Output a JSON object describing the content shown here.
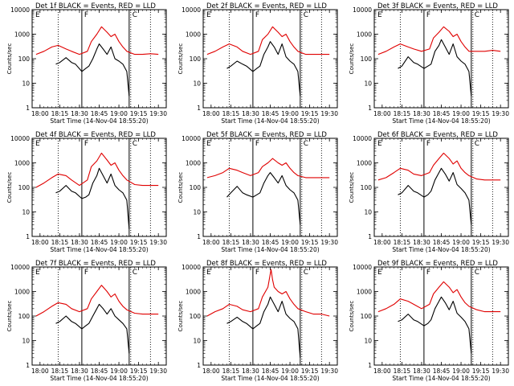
{
  "chart_data": {
    "type": "line",
    "layout": "3x3 grid of panels",
    "x_axis": {
      "label": "Start Time (14-Nov-04 18:55:20)",
      "ticks": [
        "18:00",
        "18:15",
        "18:30",
        "18:45",
        "19:00",
        "19:15",
        "19:30"
      ],
      "tick_values_hours": [
        18.0,
        18.25,
        18.5,
        18.75,
        19.0,
        19.25,
        19.5
      ],
      "range_hours": [
        17.9,
        19.6
      ]
    },
    "y_axis": {
      "label": "Counts/sec",
      "scale": "log",
      "range": [
        1,
        10000
      ],
      "ticks": [
        "1",
        "10",
        "100",
        "1000",
        "10000"
      ],
      "tick_values": [
        1,
        10,
        100,
        1000,
        10000
      ]
    },
    "markers": {
      "solid_lines_hours": [
        18.53,
        19.13
      ],
      "dotted_lines_hours": [
        18.23,
        19.15,
        19.4
      ],
      "flags": [
        "E",
        "F",
        "C"
      ],
      "flag_positions_hours": [
        17.93,
        18.55,
        19.16
      ]
    },
    "series_meta": [
      {
        "name": "Events",
        "color": "#000000"
      },
      {
        "name": "LLD",
        "color": "#e00000"
      }
    ],
    "panels": [
      {
        "title": "Det 1f BLACK = Events, RED = LLD",
        "series": [
          {
            "name": "Events",
            "color": "#000000",
            "x": [
              18.2,
              18.25,
              18.33,
              18.4,
              18.45,
              18.53,
              18.58,
              18.62,
              18.67,
              18.72,
              18.75,
              18.8,
              18.85,
              18.9,
              18.95,
              19.0,
              19.05,
              19.1,
              19.13
            ],
            "y": [
              60,
              70,
              110,
              70,
              60,
              30,
              40,
              50,
              100,
              250,
              400,
              250,
              150,
              300,
              100,
              80,
              60,
              30,
              3
            ]
          },
          {
            "name": "LLD",
            "color": "#e00000",
            "x": [
              17.95,
              18.05,
              18.15,
              18.23,
              18.33,
              18.4,
              18.5,
              18.6,
              18.65,
              18.72,
              18.78,
              18.85,
              18.9,
              18.95,
              19.0,
              19.05,
              19.1,
              19.2,
              19.3,
              19.4,
              19.5
            ],
            "y": [
              150,
              200,
              300,
              350,
              250,
              200,
              150,
              200,
              500,
              1000,
              2000,
              1200,
              800,
              1000,
              500,
              300,
              200,
              150,
              150,
              160,
              150
            ]
          }
        ]
      },
      {
        "title": "Det 2f BLACK = Events, RED = LLD",
        "series": [
          {
            "name": "Events",
            "color": "#000000",
            "x": [
              18.2,
              18.25,
              18.33,
              18.4,
              18.45,
              18.53,
              18.58,
              18.62,
              18.67,
              18.72,
              18.75,
              18.8,
              18.85,
              18.9,
              18.95,
              19.0,
              19.05,
              19.1,
              19.13
            ],
            "y": [
              40,
              50,
              80,
              60,
              50,
              30,
              40,
              50,
              150,
              300,
              500,
              300,
              150,
              400,
              120,
              80,
              60,
              30,
              3
            ]
          },
          {
            "name": "LLD",
            "color": "#e00000",
            "x": [
              17.95,
              18.05,
              18.15,
              18.23,
              18.33,
              18.4,
              18.5,
              18.6,
              18.65,
              18.72,
              18.78,
              18.85,
              18.9,
              18.95,
              19.0,
              19.05,
              19.1,
              19.2,
              19.3,
              19.4,
              19.5
            ],
            "y": [
              150,
              200,
              300,
              400,
              300,
              200,
              150,
              200,
              600,
              1000,
              2000,
              1200,
              800,
              1000,
              500,
              300,
              200,
              150,
              150,
              150,
              150
            ]
          }
        ]
      },
      {
        "title": "Det 3f BLACK = Events, RED = LLD",
        "series": [
          {
            "name": "Events",
            "color": "#000000",
            "x": [
              18.2,
              18.25,
              18.33,
              18.4,
              18.45,
              18.53,
              18.58,
              18.62,
              18.67,
              18.72,
              18.75,
              18.8,
              18.85,
              18.9,
              18.95,
              19.0,
              19.05,
              19.1,
              19.13
            ],
            "y": [
              40,
              50,
              120,
              70,
              60,
              40,
              50,
              60,
              200,
              350,
              600,
              300,
              150,
              400,
              120,
              80,
              60,
              30,
              3
            ]
          },
          {
            "name": "LLD",
            "color": "#e00000",
            "x": [
              17.95,
              18.05,
              18.15,
              18.23,
              18.33,
              18.4,
              18.5,
              18.6,
              18.65,
              18.72,
              18.78,
              18.85,
              18.9,
              18.95,
              19.0,
              19.05,
              19.1,
              19.2,
              19.3,
              19.4,
              19.5
            ],
            "y": [
              150,
              200,
              300,
              400,
              300,
              250,
              200,
              250,
              700,
              1200,
              2000,
              1300,
              800,
              1000,
              500,
              300,
              200,
              200,
              200,
              220,
              200
            ]
          }
        ]
      },
      {
        "title": "Det 4f BLACK = Events, RED = LLD",
        "series": [
          {
            "name": "Events",
            "color": "#000000",
            "x": [
              18.2,
              18.25,
              18.33,
              18.4,
              18.45,
              18.53,
              18.58,
              18.62,
              18.67,
              18.72,
              18.75,
              18.8,
              18.85,
              18.9,
              18.95,
              19.0,
              19.05,
              19.1,
              19.13
            ],
            "y": [
              60,
              70,
              120,
              70,
              60,
              35,
              40,
              50,
              150,
              300,
              600,
              300,
              150,
              350,
              120,
              80,
              60,
              30,
              2
            ]
          },
          {
            "name": "LLD",
            "color": "#e00000",
            "x": [
              17.95,
              18.05,
              18.15,
              18.23,
              18.33,
              18.4,
              18.5,
              18.6,
              18.65,
              18.72,
              18.78,
              18.85,
              18.9,
              18.95,
              19.0,
              19.05,
              19.1,
              19.2,
              19.3,
              19.4,
              19.5
            ],
            "y": [
              100,
              150,
              250,
              350,
              300,
              200,
              120,
              200,
              700,
              1200,
              2500,
              1300,
              800,
              1000,
              500,
              300,
              200,
              130,
              120,
              120,
              120
            ]
          }
        ]
      },
      {
        "title": "Det 5f BLACK = Events, RED = LLD",
        "series": [
          {
            "name": "Events",
            "color": "#000000",
            "x": [
              18.2,
              18.25,
              18.33,
              18.4,
              18.45,
              18.53,
              18.58,
              18.62,
              18.67,
              18.72,
              18.75,
              18.8,
              18.85,
              18.9,
              18.95,
              19.0,
              19.05,
              19.1,
              19.13
            ],
            "y": [
              40,
              60,
              110,
              60,
              50,
              40,
              50,
              60,
              150,
              300,
              400,
              250,
              150,
              300,
              120,
              80,
              60,
              30,
              3
            ]
          },
          {
            "name": "LLD",
            "color": "#e00000",
            "x": [
              17.95,
              18.05,
              18.15,
              18.23,
              18.33,
              18.4,
              18.5,
              18.6,
              18.65,
              18.72,
              18.78,
              18.85,
              18.9,
              18.95,
              19.0,
              19.05,
              19.1,
              19.2,
              19.3,
              19.4,
              19.5
            ],
            "y": [
              250,
              300,
              400,
              600,
              500,
              400,
              300,
              400,
              700,
              1000,
              1500,
              1000,
              800,
              1000,
              600,
              400,
              300,
              250,
              250,
              250,
              250
            ]
          }
        ]
      },
      {
        "title": "Det 6f BLACK = Events, RED = LLD",
        "series": [
          {
            "name": "Events",
            "color": "#000000",
            "x": [
              18.2,
              18.25,
              18.33,
              18.4,
              18.45,
              18.53,
              18.58,
              18.62,
              18.67,
              18.72,
              18.75,
              18.8,
              18.85,
              18.9,
              18.95,
              19.0,
              19.05,
              19.1,
              19.13
            ],
            "y": [
              50,
              60,
              120,
              70,
              60,
              40,
              50,
              70,
              200,
              400,
              600,
              350,
              180,
              400,
              130,
              90,
              60,
              30,
              3
            ]
          },
          {
            "name": "LLD",
            "color": "#e00000",
            "x": [
              17.95,
              18.05,
              18.15,
              18.23,
              18.33,
              18.4,
              18.5,
              18.6,
              18.65,
              18.72,
              18.78,
              18.85,
              18.9,
              18.95,
              19.0,
              19.05,
              19.1,
              19.2,
              19.3,
              19.4,
              19.5
            ],
            "y": [
              200,
              250,
              400,
              600,
              500,
              350,
              300,
              400,
              800,
              1500,
              2500,
              1500,
              900,
              1200,
              600,
              400,
              300,
              220,
              200,
              200,
              200
            ]
          }
        ]
      },
      {
        "title": "Det 7f BLACK = Events, RED = LLD",
        "series": [
          {
            "name": "Events",
            "color": "#000000",
            "x": [
              18.2,
              18.25,
              18.33,
              18.4,
              18.45,
              18.53,
              18.58,
              18.62,
              18.67,
              18.72,
              18.75,
              18.8,
              18.85,
              18.9,
              18.95,
              19.0,
              19.05,
              19.1,
              19.13
            ],
            "y": [
              50,
              60,
              100,
              60,
              50,
              30,
              40,
              50,
              100,
              200,
              300,
              200,
              120,
              200,
              100,
              70,
              50,
              30,
              3
            ]
          },
          {
            "name": "LLD",
            "color": "#e00000",
            "x": [
              17.95,
              18.05,
              18.15,
              18.23,
              18.33,
              18.4,
              18.5,
              18.6,
              18.65,
              18.72,
              18.78,
              18.85,
              18.9,
              18.95,
              19.0,
              19.05,
              19.1,
              19.2,
              19.3,
              19.4,
              19.5
            ],
            "y": [
              100,
              150,
              250,
              350,
              300,
              200,
              150,
              200,
              500,
              1000,
              1800,
              1000,
              600,
              800,
              400,
              250,
              180,
              130,
              120,
              120,
              120
            ]
          }
        ]
      },
      {
        "title": "Det 8f BLACK = Events, RED = LLD",
        "series": [
          {
            "name": "Events",
            "color": "#000000",
            "x": [
              18.2,
              18.25,
              18.33,
              18.4,
              18.45,
              18.53,
              18.58,
              18.62,
              18.67,
              18.72,
              18.75,
              18.8,
              18.85,
              18.9,
              18.95,
              19.0,
              19.05,
              19.1,
              19.13
            ],
            "y": [
              50,
              60,
              90,
              60,
              50,
              30,
              40,
              50,
              150,
              300,
              600,
              300,
              150,
              400,
              120,
              80,
              60,
              30,
              2
            ]
          },
          {
            "name": "LLD",
            "color": "#e00000",
            "x": [
              17.95,
              18.05,
              18.15,
              18.23,
              18.33,
              18.4,
              18.5,
              18.6,
              18.65,
              18.72,
              18.76,
              18.78,
              18.8,
              18.85,
              18.9,
              18.95,
              19.0,
              19.05,
              19.1,
              19.2,
              19.3,
              19.4,
              19.5
            ],
            "y": [
              100,
              150,
              200,
              300,
              250,
              180,
              150,
              200,
              600,
              1500,
              8000,
              3000,
              1500,
              1000,
              800,
              1000,
              500,
              300,
              200,
              150,
              120,
              120,
              100
            ]
          }
        ]
      },
      {
        "title": "Det 9f BLACK = Events, RED = LLD",
        "series": [
          {
            "name": "Events",
            "color": "#000000",
            "x": [
              18.2,
              18.25,
              18.33,
              18.4,
              18.45,
              18.53,
              18.58,
              18.62,
              18.67,
              18.72,
              18.75,
              18.8,
              18.85,
              18.9,
              18.95,
              19.0,
              19.05,
              19.1,
              19.13
            ],
            "y": [
              60,
              70,
              120,
              70,
              60,
              40,
              50,
              70,
              200,
              400,
              600,
              350,
              180,
              400,
              130,
              90,
              60,
              30,
              3
            ]
          },
          {
            "name": "LLD",
            "color": "#e00000",
            "x": [
              17.95,
              18.05,
              18.15,
              18.23,
              18.33,
              18.4,
              18.5,
              18.6,
              18.65,
              18.72,
              18.78,
              18.85,
              18.9,
              18.95,
              19.0,
              19.05,
              19.1,
              19.2,
              19.3,
              19.4,
              19.5
            ],
            "y": [
              150,
              200,
              300,
              500,
              400,
              300,
              200,
              300,
              800,
              1500,
              2500,
              1500,
              900,
              1200,
              600,
              350,
              250,
              180,
              150,
              150,
              150
            ]
          }
        ]
      }
    ]
  }
}
